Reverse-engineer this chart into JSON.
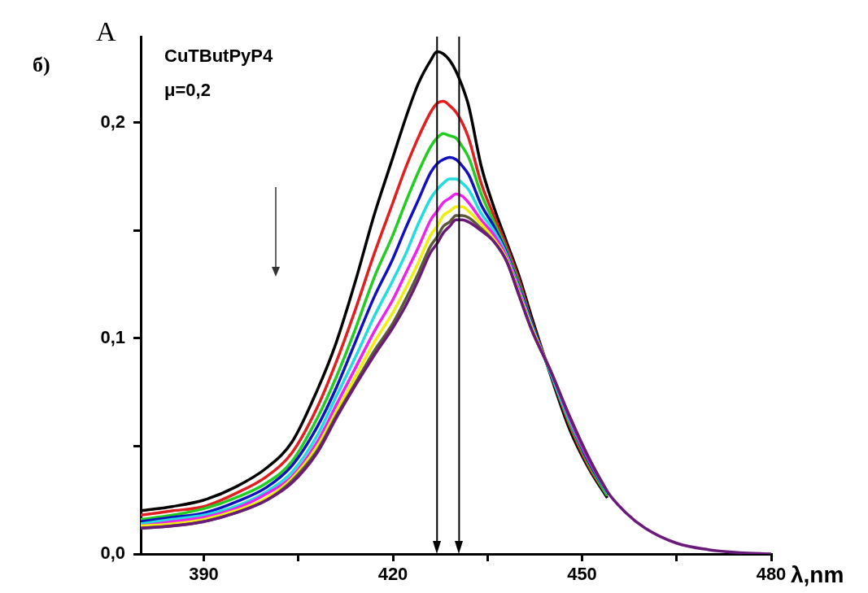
{
  "chart_data": {
    "type": "line",
    "xlabel": "λ,nm",
    "ylabel": "A",
    "annotations": [
      "б)",
      "CuTButPyP4",
      "μ=0,2"
    ],
    "x": [
      380,
      385,
      390,
      395,
      400,
      404,
      408,
      411,
      414,
      417,
      420,
      422,
      424,
      426,
      427,
      428,
      429,
      430,
      431,
      432,
      434,
      436,
      438,
      440,
      442,
      445,
      448,
      451,
      454,
      457,
      460,
      465,
      470,
      475,
      480
    ],
    "series": [
      {
        "color": "#000000",
        "values": [
          0.02,
          0.022,
          0.025,
          0.031,
          0.04,
          0.052,
          0.076,
          0.098,
          0.126,
          0.157,
          0.184,
          0.202,
          0.218,
          0.229,
          0.233,
          0.232,
          0.229,
          0.224,
          0.217,
          0.208,
          0.18,
          0.161,
          0.145,
          0.129,
          0.11,
          0.083,
          0.058,
          0.04,
          0.026,
          null,
          null,
          null,
          null,
          null,
          null
        ]
      },
      {
        "color": "#e02020",
        "values": [
          0.018,
          0.02,
          0.022,
          0.028,
          0.036,
          0.047,
          0.068,
          0.089,
          0.113,
          0.139,
          0.163,
          0.179,
          0.193,
          0.205,
          0.209,
          0.21,
          0.208,
          0.205,
          0.2,
          0.193,
          0.172,
          0.157,
          0.143,
          0.127,
          0.108,
          0.084,
          0.06,
          0.041,
          0.027,
          null,
          null,
          null,
          null,
          null,
          null
        ]
      },
      {
        "color": "#22cc22",
        "values": [
          0.016,
          0.018,
          0.021,
          0.026,
          0.033,
          0.043,
          0.063,
          0.082,
          0.104,
          0.128,
          0.148,
          0.163,
          0.177,
          0.189,
          0.193,
          0.195,
          0.194,
          0.193,
          0.189,
          0.184,
          0.167,
          0.154,
          0.141,
          0.125,
          0.107,
          0.084,
          0.061,
          0.042,
          0.027,
          null,
          null,
          null,
          null,
          null,
          null
        ]
      },
      {
        "color": "#1010c0",
        "values": [
          0.015,
          0.017,
          0.019,
          0.024,
          0.031,
          0.041,
          0.059,
          0.077,
          0.098,
          0.119,
          0.137,
          0.151,
          0.164,
          0.177,
          0.181,
          0.183,
          0.184,
          0.183,
          0.18,
          0.176,
          0.162,
          0.152,
          0.14,
          0.124,
          0.107,
          0.084,
          0.062,
          0.043,
          0.028,
          null,
          null,
          null,
          null,
          null,
          null
        ]
      },
      {
        "color": "#22dddd",
        "values": [
          0.014,
          0.016,
          0.018,
          0.022,
          0.029,
          0.038,
          0.055,
          0.073,
          0.091,
          0.11,
          0.127,
          0.139,
          0.153,
          0.165,
          0.169,
          0.172,
          0.174,
          0.174,
          0.172,
          0.169,
          0.158,
          0.15,
          0.139,
          0.123,
          0.106,
          0.084,
          0.062,
          0.044,
          0.028,
          null,
          null,
          null,
          null,
          null,
          null
        ]
      },
      {
        "color": "#ee22ee",
        "values": [
          0.013,
          0.015,
          0.017,
          0.021,
          0.028,
          0.036,
          0.052,
          0.069,
          0.086,
          0.103,
          0.118,
          0.13,
          0.142,
          0.155,
          0.159,
          0.163,
          0.165,
          0.167,
          0.166,
          0.163,
          0.155,
          0.148,
          0.138,
          0.122,
          0.105,
          0.085,
          0.063,
          0.044,
          0.029,
          null,
          null,
          null,
          null,
          null,
          null
        ]
      },
      {
        "color": "#eeee10",
        "values": [
          0.013,
          0.014,
          0.016,
          0.02,
          0.026,
          0.035,
          0.05,
          0.066,
          0.082,
          0.098,
          0.112,
          0.123,
          0.135,
          0.148,
          0.152,
          0.157,
          0.159,
          0.161,
          0.161,
          0.159,
          0.153,
          0.146,
          0.137,
          0.121,
          0.105,
          0.085,
          null,
          null,
          null,
          null,
          null,
          null,
          null,
          null,
          null
        ]
      },
      {
        "color": "#5a5a3a",
        "values": [
          0.012,
          0.013,
          0.015,
          0.019,
          0.025,
          0.034,
          0.048,
          0.064,
          0.079,
          0.094,
          0.107,
          0.118,
          0.13,
          0.143,
          0.147,
          0.152,
          0.154,
          0.157,
          0.157,
          0.156,
          0.151,
          0.145,
          0.136,
          0.12,
          0.104,
          0.085,
          0.064,
          0.045,
          0.029,
          null,
          null,
          null,
          null,
          null,
          null
        ]
      },
      {
        "color": "#6a1a7a",
        "values": [
          0.012,
          0.013,
          0.015,
          0.019,
          0.025,
          0.033,
          0.047,
          0.063,
          0.078,
          0.092,
          0.105,
          0.115,
          0.127,
          0.14,
          0.144,
          0.149,
          0.152,
          0.155,
          0.155,
          0.154,
          0.15,
          0.145,
          0.136,
          0.12,
          0.104,
          0.085,
          0.064,
          0.045,
          0.029,
          0.019,
          0.012,
          0.005,
          0.002,
          0.0006,
          0
        ]
      }
    ],
    "xlim": [
      380,
      480
    ],
    "xticks": [
      390,
      {
        "value": 405,
        "label": null
      },
      420,
      {
        "value": 435,
        "label": null
      },
      450,
      {
        "value": 465,
        "label": null
      },
      480
    ],
    "ylim": [
      0,
      0.24
    ],
    "yticks": [
      {
        "value": 0,
        "label": "0,0"
      },
      {
        "value": 0.05,
        "label": null
      },
      {
        "value": 0.1,
        "label": "0,1"
      },
      {
        "value": 0.15,
        "label": null
      },
      {
        "value": 0.2,
        "label": "0,2"
      }
    ],
    "ref_lines": [
      {
        "axis": "x",
        "value": 427,
        "color": "#000000"
      },
      {
        "axis": "x",
        "value": 430.5,
        "color": "#000000"
      }
    ],
    "grid": false,
    "legend": false,
    "line_style": "solid"
  }
}
